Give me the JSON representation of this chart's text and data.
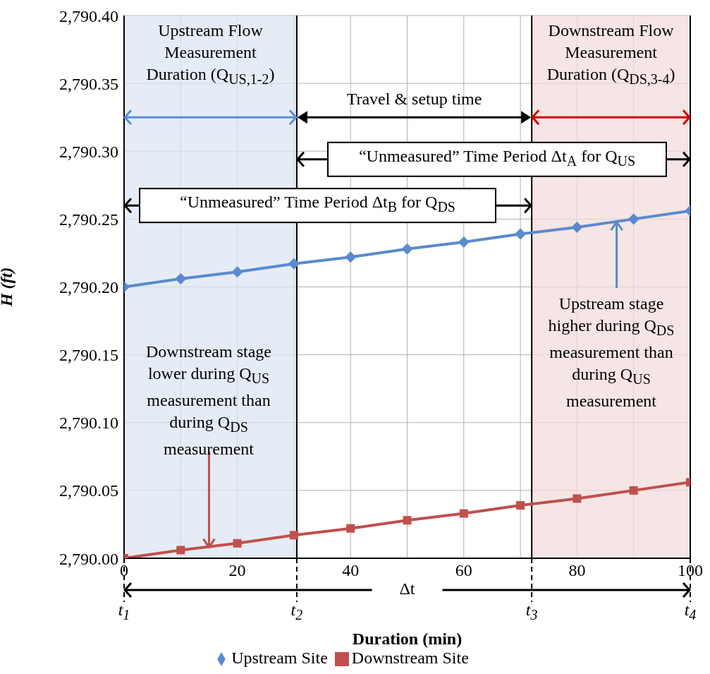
{
  "chart_data": {
    "type": "line",
    "xlabel": "Duration (min)",
    "ylabel": "H (ft)",
    "x": [
      0,
      10,
      20,
      30,
      40,
      50,
      60,
      70,
      80,
      90,
      100
    ],
    "series": [
      {
        "name": "Upstream Site",
        "color": "#5a8ad0",
        "marker": "diamond",
        "values": [
          2790.2,
          2790.206,
          2790.211,
          2790.217,
          2790.222,
          2790.228,
          2790.233,
          2790.239,
          2790.244,
          2790.25,
          2790.256
        ]
      },
      {
        "name": "Downstream Site",
        "color": "#c0504d",
        "marker": "square",
        "values": [
          2790,
          2790.006,
          2790.011,
          2790.017,
          2790.022,
          2790.028,
          2790.033,
          2790.039,
          2790.044,
          2790.05,
          2790.056
        ]
      }
    ],
    "xlim": [
      0,
      100
    ],
    "xticks": [
      0,
      {
        "value": 10,
        "label": null
      },
      20,
      {
        "value": 30,
        "label": null
      },
      40,
      {
        "value": 50,
        "label": null
      },
      60,
      {
        "value": 70,
        "label": null
      },
      80,
      {
        "value": 90,
        "label": null
      },
      100
    ],
    "ylim": [
      2790,
      2790.4
    ],
    "yticks": [
      {
        "value": 2790,
        "label": "2,790.00"
      },
      {
        "value": 2790.05,
        "label": "2,790.05"
      },
      {
        "value": 2790.1,
        "label": "2,790.10"
      },
      {
        "value": 2790.15,
        "label": "2,790.15"
      },
      {
        "value": 2790.2,
        "label": "2,790.20"
      },
      {
        "value": 2790.25,
        "label": "2,790.25"
      },
      {
        "value": 2790.3,
        "label": "2,790.30"
      },
      {
        "value": 2790.35,
        "label": "2,790.35"
      },
      {
        "value": 2790.4,
        "label": "2,790.40"
      }
    ],
    "grid": true,
    "legend": "bottom",
    "line_style": "solid",
    "bands": [
      {
        "axis": "x",
        "from": 0,
        "to": 30.5,
        "label": "Upstream Flow Measurement Duration (Q$_{US,1-2}$)",
        "color": "#dce6f2"
      },
      {
        "axis": "x",
        "from": 72,
        "to": 100,
        "label": "Downstream  Flow Measurement Duration (Q$_{DS,3-4}$)",
        "color": "#f2dcdb"
      }
    ],
    "ref_lines": [
      {
        "axis": "x",
        "value": 0,
        "label": "t$_{1}$"
      },
      {
        "axis": "x",
        "value": 30.5,
        "label": "t$_{2}$"
      },
      {
        "axis": "x",
        "value": 72,
        "label": "t$_{3}$"
      },
      {
        "axis": "x",
        "value": 100,
        "label": "t$_{4}$"
      }
    ],
    "annotations": [
      "Travel & setup time",
      "“Unmeasured” Time Period Δt$_{A}$ for Q$_{US}$",
      "“Unmeasured” Time Period Δt$_{B}$ for Q$_{DS}$",
      {
        "text": "Downstream stage lower during Q$_{US}$ measurement than during Q$_{DS}$ measurement",
        "x": 15,
        "y": 2790.008
      },
      {
        "text": "Upstream stage higher during Q$_{DS}$ measurement than during Q$_{US}$ measurement",
        "x": 87,
        "y": 2790.248
      },
      "Δt"
    ]
  }
}
